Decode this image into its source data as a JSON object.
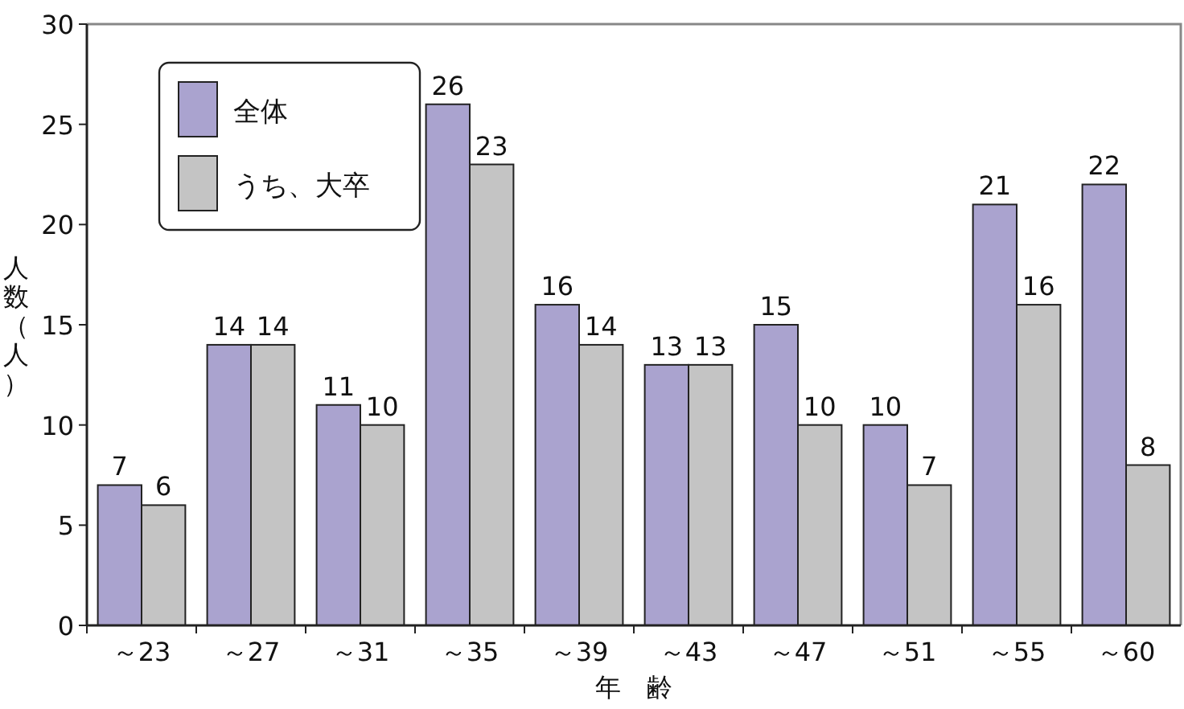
{
  "chart_data": {
    "type": "bar",
    "xlabel": "年　齢",
    "ylabel": "人数（人）",
    "categories": [
      "～23",
      "～27",
      "～31",
      "～35",
      "～39",
      "～43",
      "～47",
      "～51",
      "～55",
      "～60"
    ],
    "series": [
      {
        "name": "全体",
        "color": "#aaa3cf",
        "values": [
          7,
          14,
          11,
          26,
          16,
          13,
          15,
          10,
          21,
          22
        ]
      },
      {
        "name": "うち、大卒",
        "color": "#c4c4c4",
        "values": [
          6,
          14,
          10,
          23,
          14,
          13,
          10,
          7,
          16,
          8
        ]
      }
    ],
    "ylim": [
      0,
      30
    ],
    "yticks": [
      0,
      5,
      10,
      15,
      20,
      25,
      30
    ],
    "data_labels": true,
    "legend": "top left",
    "grid": false
  }
}
